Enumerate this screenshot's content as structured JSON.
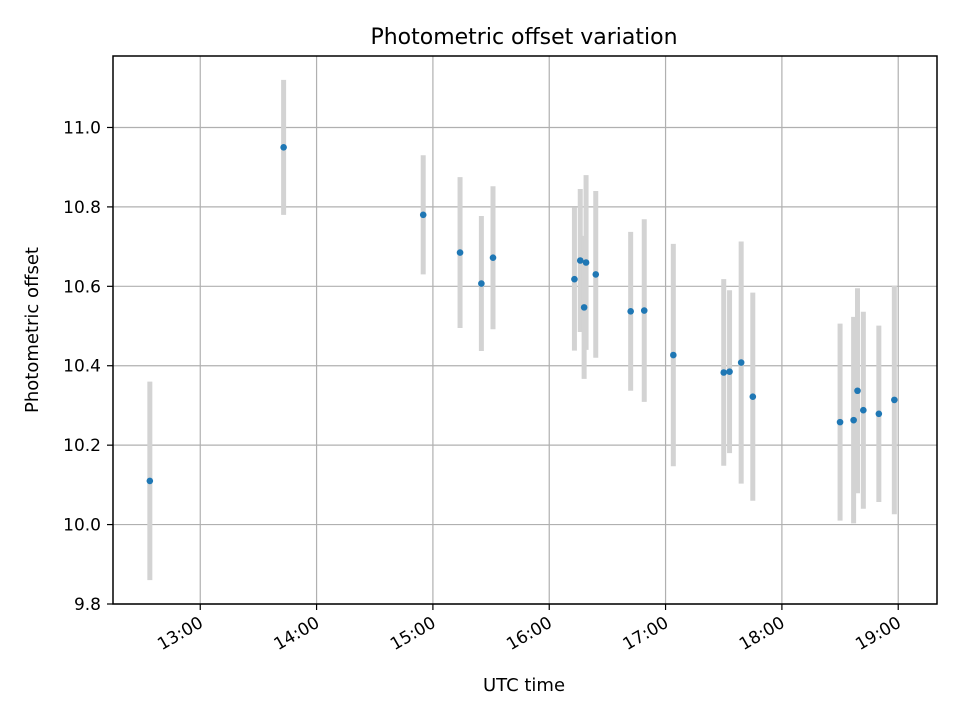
{
  "chart_data": {
    "type": "scatter",
    "title": "Photometric offset variation",
    "xlabel": "UTC time",
    "ylabel": "Photometric offset",
    "xlim": [
      "12:15",
      "19:20"
    ],
    "ylim": [
      9.8,
      11.18
    ],
    "x_ticks": [
      "13:00",
      "14:00",
      "15:00",
      "16:00",
      "17:00",
      "18:00",
      "19:00"
    ],
    "y_ticks": [
      "9.8",
      "10.0",
      "10.2",
      "10.4",
      "10.6",
      "10.8",
      "11.0"
    ],
    "grid": true,
    "colors": {
      "points": "#1f77b4",
      "errorbars": "#d3d3d3",
      "grid": "#b0b0b0"
    },
    "series": [
      {
        "points": [
          {
            "x": "12:34",
            "y": 10.11,
            "err": 0.25
          },
          {
            "x": "13:43",
            "y": 10.95,
            "err": 0.17
          },
          {
            "x": "14:55",
            "y": 10.78,
            "err": 0.15
          },
          {
            "x": "15:14",
            "y": 10.685,
            "err": 0.19
          },
          {
            "x": "15:25",
            "y": 10.607,
            "err": 0.17
          },
          {
            "x": "15:31",
            "y": 10.672,
            "err": 0.18
          },
          {
            "x": "16:13",
            "y": 10.618,
            "err": 0.18
          },
          {
            "x": "16:16",
            "y": 10.665,
            "err": 0.18
          },
          {
            "x": "16:18",
            "y": 10.547,
            "err": 0.18
          },
          {
            "x": "16:19",
            "y": 10.66,
            "err": 0.22
          },
          {
            "x": "16:24",
            "y": 10.63,
            "err": 0.21
          },
          {
            "x": "16:42",
            "y": 10.537,
            "err": 0.2
          },
          {
            "x": "16:49",
            "y": 10.539,
            "err": 0.23
          },
          {
            "x": "17:04",
            "y": 10.427,
            "err": 0.28
          },
          {
            "x": "17:30",
            "y": 10.383,
            "err": 0.235
          },
          {
            "x": "17:33",
            "y": 10.385,
            "err": 0.205
          },
          {
            "x": "17:39",
            "y": 10.408,
            "err": 0.305
          },
          {
            "x": "17:45",
            "y": 10.322,
            "err": 0.262
          },
          {
            "x": "18:30",
            "y": 10.258,
            "err": 0.248
          },
          {
            "x": "18:37",
            "y": 10.263,
            "err": 0.26
          },
          {
            "x": "18:39",
            "y": 10.337,
            "err": 0.258
          },
          {
            "x": "18:42",
            "y": 10.288,
            "err": 0.248
          },
          {
            "x": "18:50",
            "y": 10.279,
            "err": 0.222
          },
          {
            "x": "18:58",
            "y": 10.314,
            "err": 0.288
          }
        ]
      }
    ]
  }
}
